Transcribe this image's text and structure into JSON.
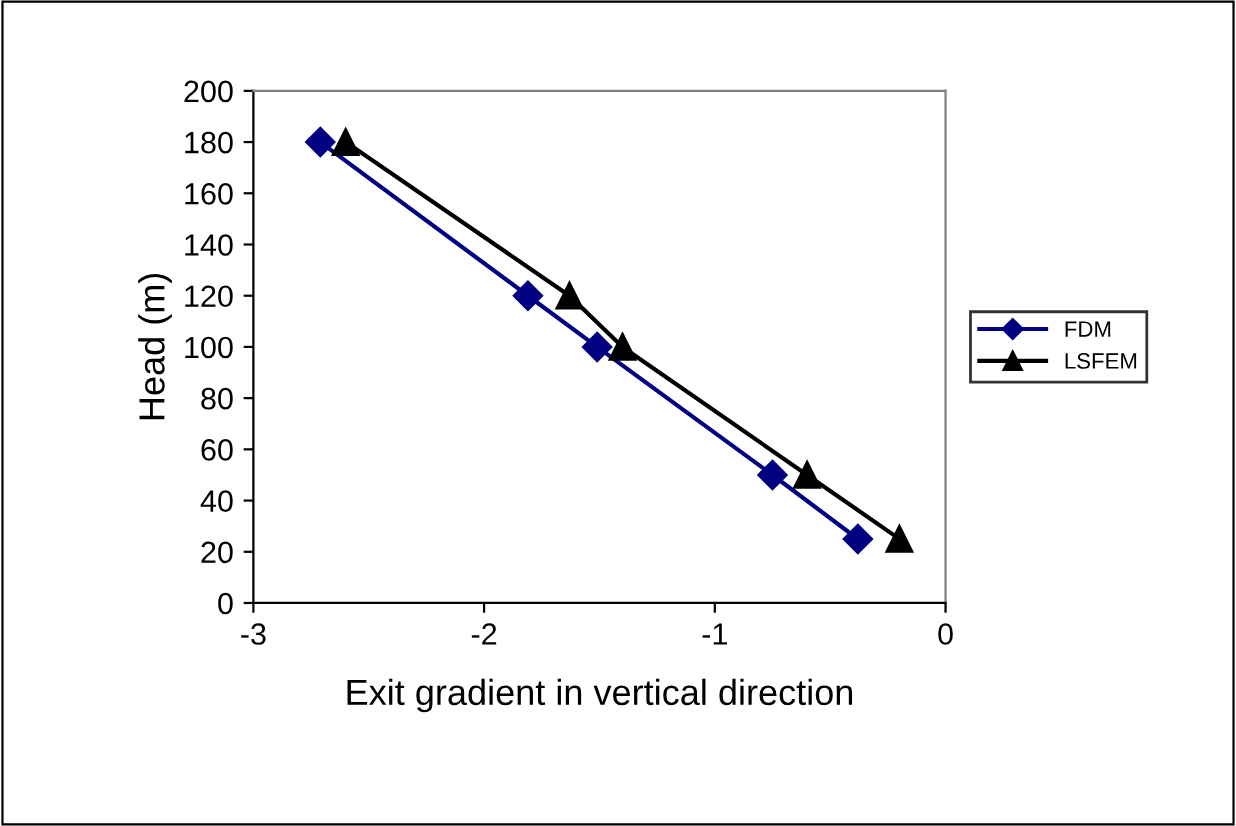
{
  "chart_data": {
    "type": "line",
    "xlabel": "Exit gradient in vertical direction",
    "ylabel": "Head (m)",
    "xlim": [
      -3,
      0
    ],
    "xticks": [
      -3,
      -2,
      -1,
      0
    ],
    "ylim": [
      0,
      200
    ],
    "yticks": [
      0,
      20,
      40,
      60,
      80,
      100,
      120,
      140,
      160,
      180,
      200
    ],
    "grid": false,
    "legend": "right",
    "series": [
      {
        "name": "FDM",
        "color": "#000080",
        "marker": "diamond",
        "x": [
          -2.71,
          -1.81,
          -1.51,
          -0.75,
          -0.38
        ],
        "values": [
          180,
          120,
          100,
          50,
          25
        ]
      },
      {
        "name": "LSFEM",
        "color": "#000000",
        "marker": "triangle",
        "x": [
          -2.6,
          -1.63,
          -1.4,
          -0.6,
          -0.2
        ],
        "values": [
          180,
          120,
          100,
          50,
          25
        ]
      }
    ]
  }
}
